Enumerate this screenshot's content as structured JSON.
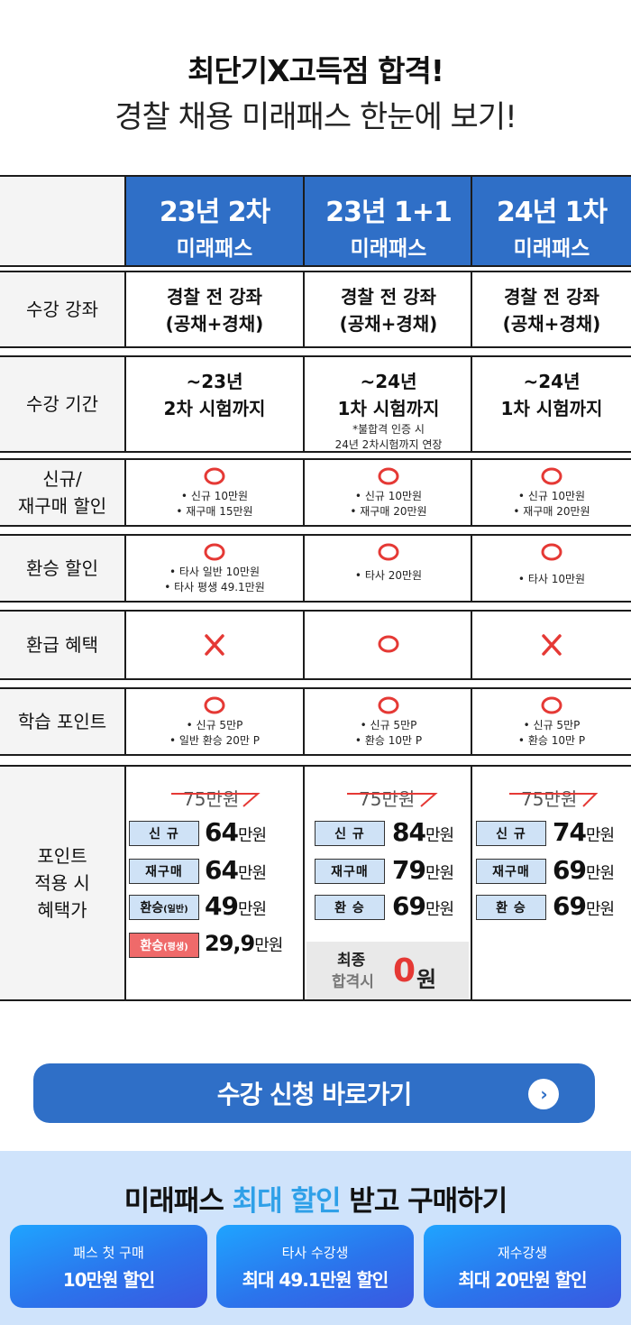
{
  "header": {
    "title": "최단기X고득점 합격!",
    "subtitle": "경찰 채용 미래패스 한눈에 보기!"
  },
  "columns": [
    {
      "line1": "23년 2차",
      "line2": "미래패스"
    },
    {
      "line1": "23년 1+1",
      "line2": "미래패스"
    },
    {
      "line1": "24년 1차",
      "line2": "미래패스"
    }
  ],
  "rows": {
    "course": {
      "label": "수강 강좌",
      "values": [
        {
          "l1": "경찰 전 강좌",
          "l2": "(공채+경채)"
        },
        {
          "l1": "경찰 전 강좌",
          "l2": "(공채+경채)"
        },
        {
          "l1": "경찰 전 강좌",
          "l2": "(공채+경채)"
        }
      ]
    },
    "period": {
      "label": "수강 기간",
      "values": [
        {
          "l1": "~23년",
          "l2": "2차 시험까지",
          "n1": "",
          "n2": ""
        },
        {
          "l1": "~24년",
          "l2": "1차 시험까지",
          "n1": "*불합격 인증 시",
          "n2": "24년 2차시험까지 연장"
        },
        {
          "l1": "~24년",
          "l2": "1차 시험까지",
          "n1": "",
          "n2": ""
        }
      ]
    },
    "new_discount": {
      "label1": "신규/",
      "label2": "재구매 할인",
      "values": [
        {
          "a": "• 신규 10만원",
          "b": "• 재구매 15만원"
        },
        {
          "a": "• 신규 10만원",
          "b": "• 재구매 20만원"
        },
        {
          "a": "• 신규 10만원",
          "b": "• 재구매 20만원"
        }
      ]
    },
    "transfer_discount": {
      "label": "환승 할인",
      "values": [
        {
          "a": "• 타사 일반 10만원",
          "b": "• 타사 평생 49.1만원"
        },
        {
          "a": "• 타사 20만원",
          "b": ""
        },
        {
          "a": "• 타사 10만원",
          "b": ""
        }
      ]
    },
    "refund": {
      "label": "환급 혜택",
      "values": [
        "X",
        "O",
        "X"
      ]
    },
    "points": {
      "label": "학습 포인트",
      "values": [
        {
          "a": "• 신규 5만P",
          "b": "• 일반 환승 20만 P"
        },
        {
          "a": "• 신규 5만P",
          "b": "• 환승 10만 P"
        },
        {
          "a": "• 신규 5만P",
          "b": "• 환승 10만 P"
        }
      ]
    },
    "price": {
      "label1": "포인트",
      "label2": "적용 시",
      "label3": "혜택가",
      "old_price": "75만원",
      "unit": "만원",
      "col1": [
        {
          "tag": "신 규",
          "amount": "64"
        },
        {
          "tag": "재구매",
          "amount": "64"
        },
        {
          "tag": "환승",
          "tag_sub": "(일반)",
          "amount": "49"
        },
        {
          "tag": "환승",
          "tag_sub": "(평생)",
          "amount": "29,9"
        }
      ],
      "col2": [
        {
          "tag": "신 규",
          "amount": "84"
        },
        {
          "tag": "재구매",
          "amount": "79"
        },
        {
          "tag": "환 승",
          "amount": "69"
        }
      ],
      "col3": [
        {
          "tag": "신 규",
          "amount": "74"
        },
        {
          "tag": "재구매",
          "amount": "69"
        },
        {
          "tag": "환 승",
          "amount": "69"
        }
      ],
      "final": {
        "l1": "최종",
        "l2": "합격시",
        "zero": "0",
        "won": "원"
      }
    }
  },
  "cta": {
    "label": "수강 신청 바로가기",
    "icon": "chevron-right-icon"
  },
  "promo": {
    "title_a": "미래패스 ",
    "title_hl": "최대 할인",
    "title_b": " 받고 구매하기",
    "cards": [
      {
        "small": "패스 첫 구매",
        "big": "10만원 할인"
      },
      {
        "small": "타사 수강생",
        "big": "최대 49.1만원 할인"
      },
      {
        "small": "재수강생",
        "big": "최대 20만원 할인"
      }
    ]
  },
  "colors": {
    "accent": "#2f6fc7",
    "mark": "#e53935",
    "highlight": "#2fa0e8"
  }
}
